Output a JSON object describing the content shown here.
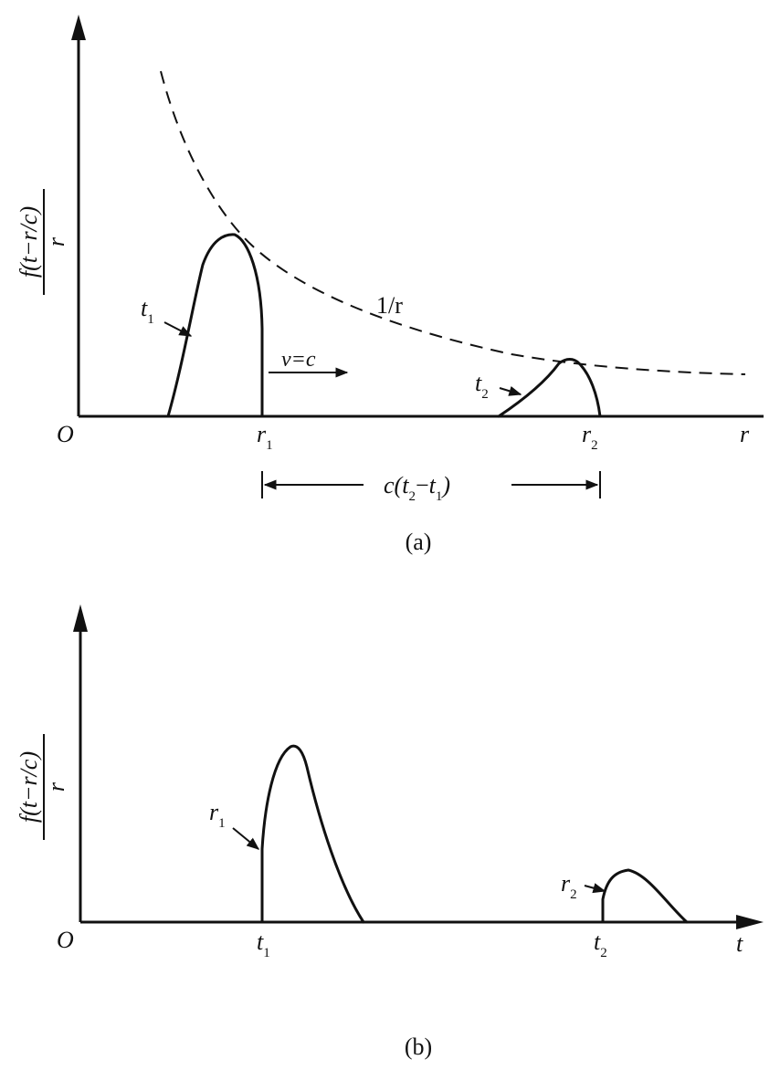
{
  "figure_a": {
    "caption": "(a)",
    "origin": "O",
    "y_label_num": "f(t−r/c)",
    "y_label_den": "r",
    "x_axis_label": "r",
    "envelope_label": "1/r",
    "velocity_label": "v=c",
    "pulse_1": {
      "label": "t",
      "sub": "1",
      "tick_label": "r",
      "tick_sub": "1"
    },
    "pulse_2": {
      "label": "t",
      "sub": "2",
      "tick_label": "r",
      "tick_sub": "2"
    },
    "distance": {
      "c": "c(",
      "t2": "t",
      "t2_sub": "2",
      "minus": "−",
      "t1": "t",
      "t1_sub": "1",
      "close": ")"
    }
  },
  "figure_b": {
    "caption": "(b)",
    "origin": "O",
    "y_label_num": "f(t−r/c)",
    "y_label_den": "r",
    "x_axis_label": "t",
    "pulse_1": {
      "label": "r",
      "sub": "1",
      "tick_label": "t",
      "tick_sub": "1"
    },
    "pulse_2": {
      "label": "r",
      "sub": "2",
      "tick_label": "t",
      "tick_sub": "2"
    }
  }
}
